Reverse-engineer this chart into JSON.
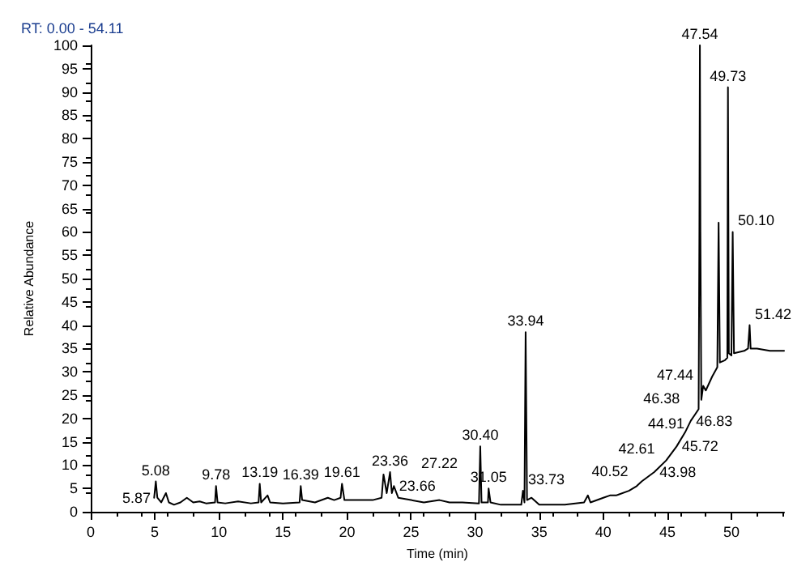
{
  "chart_data": {
    "type": "line",
    "title": "RT: 0.00 - 54.11",
    "xlabel": "Time (min)",
    "ylabel": "Relative Abundance",
    "xlim": [
      0,
      54.11
    ],
    "xticks": [
      0,
      5,
      10,
      15,
      20,
      25,
      30,
      35,
      40,
      45,
      50
    ],
    "ylim": [
      0,
      100
    ],
    "yticks": [
      0,
      5,
      10,
      15,
      20,
      25,
      30,
      35,
      40,
      45,
      50,
      55,
      60,
      65,
      70,
      75,
      80,
      85,
      90,
      95,
      100
    ],
    "grid": false,
    "marker": "none",
    "line_style": "solid",
    "series": [
      {
        "color": "#000000",
        "x": [
          4.95,
          5.0,
          5.08,
          5.2,
          5.5,
          5.87,
          6.1,
          6.5,
          7.0,
          7.5,
          8.0,
          8.5,
          9.0,
          9.7,
          9.78,
          9.9,
          10.5,
          11.5,
          12.5,
          13.1,
          13.19,
          13.3,
          13.8,
          14.0,
          15.0,
          16.3,
          16.39,
          16.5,
          17.5,
          18.5,
          19.0,
          19.5,
          19.61,
          19.8,
          21.0,
          22.0,
          22.7,
          22.85,
          23.1,
          23.36,
          23.5,
          23.66,
          24.0,
          25.0,
          26.0,
          27.22,
          28.0,
          29.0,
          30.3,
          30.4,
          30.5,
          31.0,
          31.05,
          31.2,
          32.0,
          33.6,
          33.73,
          33.85,
          33.94,
          34.05,
          34.4,
          35.0,
          37.0,
          38.5,
          38.8,
          39.0,
          40.0,
          40.52,
          41.0,
          42.0,
          42.61,
          43.0,
          43.98,
          44.91,
          45.72,
          46.38,
          46.83,
          47.2,
          47.44,
          47.5,
          47.54,
          47.58,
          47.65,
          47.8,
          48.0,
          48.5,
          48.9,
          49.0,
          49.1,
          49.5,
          49.68,
          49.73,
          49.8,
          50.0,
          50.1,
          50.2,
          51.0,
          51.3,
          51.42,
          51.5,
          52.0,
          53.0,
          54.11
        ],
        "values": [
          3,
          3,
          6.5,
          3,
          2,
          4,
          2,
          1.5,
          2,
          3,
          2,
          2.2,
          1.8,
          2,
          5.5,
          2,
          1.8,
          2.2,
          1.8,
          2,
          6,
          2,
          3.5,
          2,
          1.8,
          2,
          5.5,
          2.5,
          2,
          3,
          2.5,
          3,
          6,
          2.5,
          2.5,
          2.5,
          3,
          8,
          4,
          8.5,
          4,
          5.5,
          3,
          2.5,
          2,
          2.5,
          2,
          2,
          1.8,
          14,
          2,
          2,
          5,
          2,
          1.5,
          1.5,
          4.5,
          2,
          38.5,
          2.5,
          3,
          1.5,
          1.5,
          2,
          3.5,
          2,
          3,
          3.5,
          3.5,
          4.5,
          5.5,
          6.5,
          8.5,
          11,
          14,
          17,
          19.5,
          21,
          22,
          60,
          100,
          60,
          24,
          27,
          26,
          29,
          31,
          62,
          32,
          32.5,
          33,
          91,
          34,
          33.5,
          60,
          34,
          34.5,
          35,
          40,
          35,
          35,
          34.5,
          34.5
        ]
      }
    ],
    "annotations": [
      {
        "text": "5.08",
        "x": 5.08,
        "y": 6.5
      },
      {
        "text": "5.87",
        "x": 5.87,
        "y": 4
      },
      {
        "text": "9.78",
        "x": 9.78,
        "y": 5.5
      },
      {
        "text": "13.19",
        "x": 13.19,
        "y": 6
      },
      {
        "text": "16.39",
        "x": 16.39,
        "y": 5.5
      },
      {
        "text": "19.61",
        "x": 19.61,
        "y": 6
      },
      {
        "text": "23.36",
        "x": 23.36,
        "y": 8.5
      },
      {
        "text": "23.66",
        "x": 23.66,
        "y": 5.5
      },
      {
        "text": "27.22",
        "x": 27.22,
        "y": 2.5
      },
      {
        "text": "30.40",
        "x": 30.4,
        "y": 14
      },
      {
        "text": "31.05",
        "x": 31.05,
        "y": 5
      },
      {
        "text": "33.73",
        "x": 33.73,
        "y": 4.5
      },
      {
        "text": "33.94",
        "x": 33.94,
        "y": 38.5
      },
      {
        "text": "40.52",
        "x": 40.52,
        "y": 3.5
      },
      {
        "text": "42.61",
        "x": 42.61,
        "y": 5.5
      },
      {
        "text": "43.98",
        "x": 43.98,
        "y": 8.5
      },
      {
        "text": "44.91",
        "x": 44.91,
        "y": 11
      },
      {
        "text": "45.72",
        "x": 45.72,
        "y": 14
      },
      {
        "text": "46.38",
        "x": 46.38,
        "y": 17
      },
      {
        "text": "46.83",
        "x": 46.83,
        "y": 19.5
      },
      {
        "text": "47.44",
        "x": 47.44,
        "y": 22
      },
      {
        "text": "47.54",
        "x": 47.54,
        "y": 100
      },
      {
        "text": "49.73",
        "x": 49.73,
        "y": 91
      },
      {
        "text": "50.10",
        "x": 50.1,
        "y": 60
      },
      {
        "text": "51.42",
        "x": 51.42,
        "y": 40
      }
    ]
  }
}
